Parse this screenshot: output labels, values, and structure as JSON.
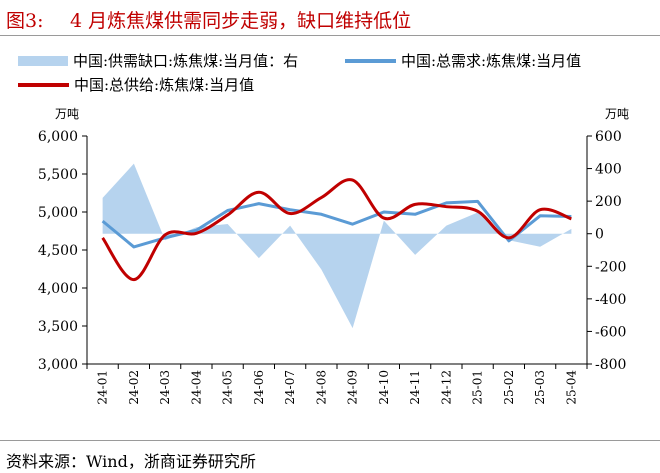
{
  "header": {
    "figure_label": "图3:",
    "title": "4 月炼焦煤供需同步走弱，缺口维持低位"
  },
  "footer": {
    "source": "资料来源：Wind，浙商证券研究所"
  },
  "colors": {
    "title": "#c00000",
    "gap_area": "#b6d3ee",
    "demand_line": "#5b9bd5",
    "supply_line": "#c00000",
    "rule": "#9a9a9a"
  },
  "chart_data": {
    "type": "line",
    "title": "",
    "y_left": {
      "unit": "万吨",
      "min": 3000,
      "max": 6000,
      "ticks": [
        "3,000",
        "3,500",
        "4,000",
        "4,500",
        "5,000",
        "5,500",
        "6,000"
      ]
    },
    "y_right": {
      "unit": "万吨",
      "min": -800,
      "max": 600,
      "ticks": [
        "-800",
        "-600",
        "-400",
        "-200",
        "0",
        "200",
        "400",
        "600"
      ]
    },
    "categories": [
      "24-01",
      "24-02",
      "24-03",
      "24-04",
      "24-05",
      "24-06",
      "24-07",
      "24-08",
      "24-09",
      "24-10",
      "24-11",
      "24-12",
      "25-01",
      "25-02",
      "25-03",
      "25-04"
    ],
    "legend": {
      "position": "top",
      "entries": [
        {
          "label": "中国:供需缺口:炼焦煤:当月值：右",
          "series": "gap"
        },
        {
          "label": "中国:总需求:炼焦煤:当月值",
          "series": "demand"
        },
        {
          "label": "中国:总供给:炼焦煤:当月值",
          "series": "supply"
        }
      ]
    },
    "series": [
      {
        "key": "gap",
        "name": "中国:供需缺口:炼焦煤:当月值：右",
        "type": "area",
        "axis": "right",
        "values": [
          220,
          430,
          -40,
          40,
          60,
          -150,
          50,
          -220,
          -580,
          80,
          -130,
          50,
          130,
          -40,
          -80,
          30
        ]
      },
      {
        "key": "demand",
        "name": "中国:总需求:炼焦煤:当月值",
        "type": "line",
        "axis": "left",
        "values": [
          4880,
          4540,
          4660,
          4760,
          5020,
          5110,
          5030,
          4970,
          4840,
          5000,
          4970,
          5120,
          5140,
          4620,
          4950,
          4940
        ]
      },
      {
        "key": "supply",
        "name": "中国:总供给:炼焦煤:当月值",
        "type": "line",
        "axis": "left",
        "values": [
          4660,
          4110,
          4700,
          4720,
          4960,
          5260,
          4980,
          5190,
          5420,
          4920,
          5100,
          5070,
          5010,
          4660,
          5030,
          4910
        ]
      }
    ]
  }
}
